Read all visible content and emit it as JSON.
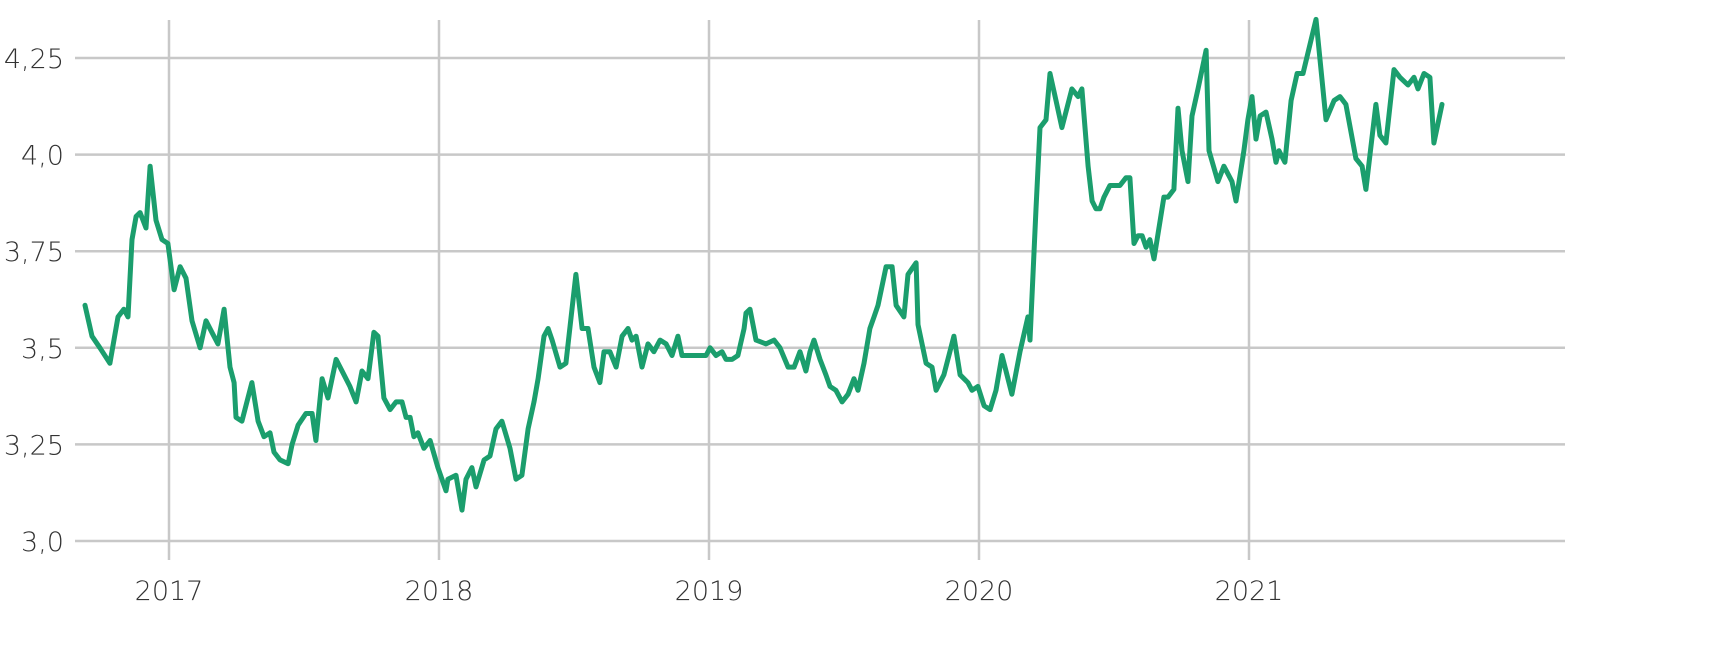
{
  "chart_data": {
    "type": "line",
    "title": "",
    "xlabel": "",
    "ylabel": "",
    "grid": true,
    "legend": "none",
    "ylim": [
      3.0,
      4.4
    ],
    "xlim": [
      2016.65,
      2022.15
    ],
    "y_ticks": [
      3.0,
      3.25,
      3.5,
      3.75,
      4.0,
      4.25
    ],
    "y_tick_labels": [
      "3,0",
      "3,25",
      "3,5",
      "3,75",
      "4,0",
      "4,25"
    ],
    "x_ticks": [
      2017,
      2018,
      2019,
      2020,
      2021
    ],
    "x_tick_labels": [
      "2017",
      "2018",
      "2019",
      "2020",
      "2021"
    ],
    "colors": {
      "line": "#1b9e6d",
      "grid": "#c8c8c8",
      "text": "#333333"
    },
    "series": [
      {
        "points": [
          [
            2016.689,
            3.61
          ],
          [
            2016.715,
            3.53
          ],
          [
            2016.744,
            3.5
          ],
          [
            2016.781,
            3.46
          ],
          [
            2016.811,
            3.58
          ],
          [
            2016.833,
            3.6
          ],
          [
            2016.848,
            3.58
          ],
          [
            2016.863,
            3.78
          ],
          [
            2016.878,
            3.84
          ],
          [
            2016.893,
            3.85
          ],
          [
            2016.915,
            3.81
          ],
          [
            2016.93,
            3.97
          ],
          [
            2016.952,
            3.83
          ],
          [
            2016.974,
            3.78
          ],
          [
            2016.996,
            3.77
          ],
          [
            2017.019,
            3.65
          ],
          [
            2017.041,
            3.71
          ],
          [
            2017.063,
            3.68
          ],
          [
            2017.085,
            3.57
          ],
          [
            2017.115,
            3.5
          ],
          [
            2017.137,
            3.57
          ],
          [
            2017.159,
            3.54
          ],
          [
            2017.181,
            3.51
          ],
          [
            2017.204,
            3.6
          ],
          [
            2017.226,
            3.45
          ],
          [
            2017.241,
            3.41
          ],
          [
            2017.248,
            3.32
          ],
          [
            2017.27,
            3.31
          ],
          [
            2017.307,
            3.41
          ],
          [
            2017.33,
            3.31
          ],
          [
            2017.352,
            3.27
          ],
          [
            2017.374,
            3.28
          ],
          [
            2017.389,
            3.23
          ],
          [
            2017.411,
            3.21
          ],
          [
            2017.441,
            3.2
          ],
          [
            2017.456,
            3.25
          ],
          [
            2017.478,
            3.3
          ],
          [
            2017.507,
            3.33
          ],
          [
            2017.53,
            3.33
          ],
          [
            2017.544,
            3.26
          ],
          [
            2017.567,
            3.42
          ],
          [
            2017.589,
            3.37
          ],
          [
            2017.619,
            3.47
          ],
          [
            2017.648,
            3.43
          ],
          [
            2017.67,
            3.4
          ],
          [
            2017.693,
            3.36
          ],
          [
            2017.715,
            3.44
          ],
          [
            2017.737,
            3.42
          ],
          [
            2017.759,
            3.54
          ],
          [
            2017.774,
            3.53
          ],
          [
            2017.796,
            3.37
          ],
          [
            2017.819,
            3.34
          ],
          [
            2017.841,
            3.36
          ],
          [
            2017.863,
            3.36
          ],
          [
            2017.878,
            3.32
          ],
          [
            2017.893,
            3.32
          ],
          [
            2017.907,
            3.27
          ],
          [
            2017.922,
            3.28
          ],
          [
            2017.944,
            3.24
          ],
          [
            2017.967,
            3.26
          ],
          [
            2017.996,
            3.19
          ],
          [
            2018.026,
            3.13
          ],
          [
            2018.033,
            3.16
          ],
          [
            2018.063,
            3.17
          ],
          [
            2018.085,
            3.08
          ],
          [
            2018.1,
            3.16
          ],
          [
            2018.122,
            3.19
          ],
          [
            2018.137,
            3.14
          ],
          [
            2018.167,
            3.21
          ],
          [
            2018.189,
            3.22
          ],
          [
            2018.211,
            3.29
          ],
          [
            2018.233,
            3.31
          ],
          [
            2018.263,
            3.24
          ],
          [
            2018.285,
            3.16
          ],
          [
            2018.307,
            3.17
          ],
          [
            2018.33,
            3.29
          ],
          [
            2018.352,
            3.36
          ],
          [
            2018.367,
            3.42
          ],
          [
            2018.389,
            3.53
          ],
          [
            2018.404,
            3.55
          ],
          [
            2018.419,
            3.52
          ],
          [
            2018.448,
            3.45
          ],
          [
            2018.47,
            3.46
          ],
          [
            2018.507,
            3.69
          ],
          [
            2018.53,
            3.55
          ],
          [
            2018.552,
            3.55
          ],
          [
            2018.574,
            3.45
          ],
          [
            2018.596,
            3.41
          ],
          [
            2018.611,
            3.49
          ],
          [
            2018.633,
            3.49
          ],
          [
            2018.656,
            3.45
          ],
          [
            2018.678,
            3.53
          ],
          [
            2018.7,
            3.55
          ],
          [
            2018.715,
            3.52
          ],
          [
            2018.73,
            3.53
          ],
          [
            2018.752,
            3.45
          ],
          [
            2018.774,
            3.51
          ],
          [
            2018.796,
            3.49
          ],
          [
            2018.819,
            3.52
          ],
          [
            2018.841,
            3.51
          ],
          [
            2018.863,
            3.48
          ],
          [
            2018.885,
            3.53
          ],
          [
            2018.9,
            3.48
          ],
          [
            2018.93,
            3.48
          ],
          [
            2018.959,
            3.48
          ],
          [
            2018.989,
            3.48
          ],
          [
            2019.004,
            3.5
          ],
          [
            2019.026,
            3.48
          ],
          [
            2019.048,
            3.49
          ],
          [
            2019.063,
            3.47
          ],
          [
            2019.085,
            3.47
          ],
          [
            2019.107,
            3.48
          ],
          [
            2019.13,
            3.55
          ],
          [
            2019.137,
            3.59
          ],
          [
            2019.152,
            3.6
          ],
          [
            2019.174,
            3.52
          ],
          [
            2019.211,
            3.51
          ],
          [
            2019.241,
            3.52
          ],
          [
            2019.263,
            3.5
          ],
          [
            2019.293,
            3.45
          ],
          [
            2019.315,
            3.45
          ],
          [
            2019.337,
            3.49
          ],
          [
            2019.359,
            3.44
          ],
          [
            2019.374,
            3.49
          ],
          [
            2019.389,
            3.52
          ],
          [
            2019.411,
            3.47
          ],
          [
            2019.433,
            3.43
          ],
          [
            2019.448,
            3.4
          ],
          [
            2019.47,
            3.39
          ],
          [
            2019.493,
            3.36
          ],
          [
            2019.515,
            3.38
          ],
          [
            2019.537,
            3.42
          ],
          [
            2019.552,
            3.39
          ],
          [
            2019.574,
            3.46
          ],
          [
            2019.596,
            3.55
          ],
          [
            2019.611,
            3.58
          ],
          [
            2019.626,
            3.61
          ],
          [
            2019.656,
            3.71
          ],
          [
            2019.678,
            3.71
          ],
          [
            2019.693,
            3.61
          ],
          [
            2019.722,
            3.58
          ],
          [
            2019.737,
            3.69
          ],
          [
            2019.767,
            3.72
          ],
          [
            2019.774,
            3.56
          ],
          [
            2019.804,
            3.46
          ],
          [
            2019.826,
            3.45
          ],
          [
            2019.841,
            3.39
          ],
          [
            2019.87,
            3.43
          ],
          [
            2019.907,
            3.53
          ],
          [
            2019.93,
            3.43
          ],
          [
            2019.959,
            3.41
          ],
          [
            2019.974,
            3.39
          ],
          [
            2019.996,
            3.4
          ],
          [
            2020.019,
            3.35
          ],
          [
            2020.041,
            3.34
          ],
          [
            2020.063,
            3.39
          ],
          [
            2020.085,
            3.48
          ],
          [
            2020.1,
            3.44
          ],
          [
            2020.122,
            3.38
          ],
          [
            2020.152,
            3.49
          ],
          [
            2020.181,
            3.58
          ],
          [
            2020.189,
            3.52
          ],
          [
            2020.211,
            3.86
          ],
          [
            2020.226,
            4.07
          ],
          [
            2020.248,
            4.09
          ],
          [
            2020.263,
            4.21
          ],
          [
            2020.285,
            4.14
          ],
          [
            2020.307,
            4.07
          ],
          [
            2020.344,
            4.17
          ],
          [
            2020.367,
            4.15
          ],
          [
            2020.381,
            4.17
          ],
          [
            2020.404,
            3.97
          ],
          [
            2020.419,
            3.88
          ],
          [
            2020.433,
            3.86
          ],
          [
            2020.448,
            3.86
          ],
          [
            2020.463,
            3.89
          ],
          [
            2020.485,
            3.92
          ],
          [
            2020.507,
            3.92
          ],
          [
            2020.522,
            3.92
          ],
          [
            2020.544,
            3.94
          ],
          [
            2020.559,
            3.94
          ],
          [
            2020.574,
            3.77
          ],
          [
            2020.589,
            3.79
          ],
          [
            2020.604,
            3.79
          ],
          [
            2020.619,
            3.76
          ],
          [
            2020.633,
            3.78
          ],
          [
            2020.648,
            3.73
          ],
          [
            2020.685,
            3.89
          ],
          [
            2020.7,
            3.89
          ],
          [
            2020.722,
            3.91
          ],
          [
            2020.737,
            4.12
          ],
          [
            2020.752,
            4.01
          ],
          [
            2020.774,
            3.93
          ],
          [
            2020.789,
            4.1
          ],
          [
            2020.811,
            4.17
          ],
          [
            2020.841,
            4.27
          ],
          [
            2020.852,
            4.01
          ],
          [
            2020.885,
            3.93
          ],
          [
            2020.907,
            3.97
          ],
          [
            2020.937,
            3.93
          ],
          [
            2020.952,
            3.88
          ],
          [
            2020.981,
            4.01
          ],
          [
            2020.996,
            4.09
          ],
          [
            2021.011,
            4.15
          ],
          [
            2021.026,
            4.04
          ],
          [
            2021.041,
            4.1
          ],
          [
            2021.063,
            4.11
          ],
          [
            2021.085,
            4.04
          ],
          [
            2021.1,
            3.98
          ],
          [
            2021.111,
            4.01
          ],
          [
            2021.133,
            3.98
          ],
          [
            2021.156,
            4.14
          ],
          [
            2021.178,
            4.21
          ],
          [
            2021.2,
            4.21
          ],
          [
            2021.248,
            4.35
          ],
          [
            2021.285,
            4.09
          ],
          [
            2021.315,
            4.14
          ],
          [
            2021.337,
            4.15
          ],
          [
            2021.359,
            4.13
          ],
          [
            2021.396,
            3.99
          ],
          [
            2021.419,
            3.97
          ],
          [
            2021.433,
            3.91
          ],
          [
            2021.47,
            4.13
          ],
          [
            2021.485,
            4.05
          ],
          [
            2021.507,
            4.03
          ],
          [
            2021.537,
            4.22
          ],
          [
            2021.559,
            4.2
          ],
          [
            2021.589,
            4.18
          ],
          [
            2021.611,
            4.2
          ],
          [
            2021.626,
            4.17
          ],
          [
            2021.648,
            4.21
          ],
          [
            2021.67,
            4.2
          ],
          [
            2021.685,
            4.03
          ],
          [
            2021.715,
            4.13
          ]
        ]
      }
    ]
  }
}
